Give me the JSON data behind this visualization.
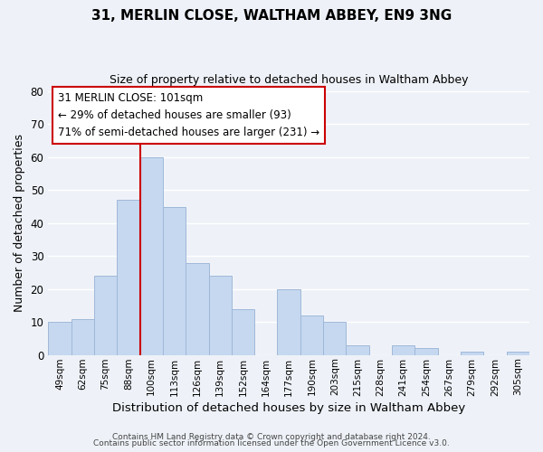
{
  "title_line1": "31, MERLIN CLOSE, WALTHAM ABBEY, EN9 3NG",
  "title_line2": "Size of property relative to detached houses in Waltham Abbey",
  "xlabel": "Distribution of detached houses by size in Waltham Abbey",
  "ylabel": "Number of detached properties",
  "bin_labels": [
    "49sqm",
    "62sqm",
    "75sqm",
    "88sqm",
    "100sqm",
    "113sqm",
    "126sqm",
    "139sqm",
    "152sqm",
    "164sqm",
    "177sqm",
    "190sqm",
    "203sqm",
    "215sqm",
    "228sqm",
    "241sqm",
    "254sqm",
    "267sqm",
    "279sqm",
    "292sqm",
    "305sqm"
  ],
  "bar_heights": [
    10,
    11,
    24,
    47,
    60,
    45,
    28,
    24,
    14,
    0,
    20,
    12,
    10,
    3,
    0,
    3,
    2,
    0,
    1,
    0,
    1
  ],
  "bar_color": "#c5d8f0",
  "bar_edge_color": "#a0b8d8",
  "ylim": [
    0,
    80
  ],
  "yticks": [
    0,
    10,
    20,
    30,
    40,
    50,
    60,
    70,
    80
  ],
  "vline_x_index": 4,
  "vline_color": "#cc0000",
  "annotation_title": "31 MERLIN CLOSE: 101sqm",
  "annotation_line1": "← 29% of detached houses are smaller (93)",
  "annotation_line2": "71% of semi-detached houses are larger (231) →",
  "annotation_box_facecolor": "#ffffff",
  "annotation_box_edgecolor": "#cc0000",
  "footer_line1": "Contains HM Land Registry data © Crown copyright and database right 2024.",
  "footer_line2": "Contains public sector information licensed under the Open Government Licence v3.0.",
  "background_color": "#eef2f8",
  "grid_color": "#ffffff"
}
